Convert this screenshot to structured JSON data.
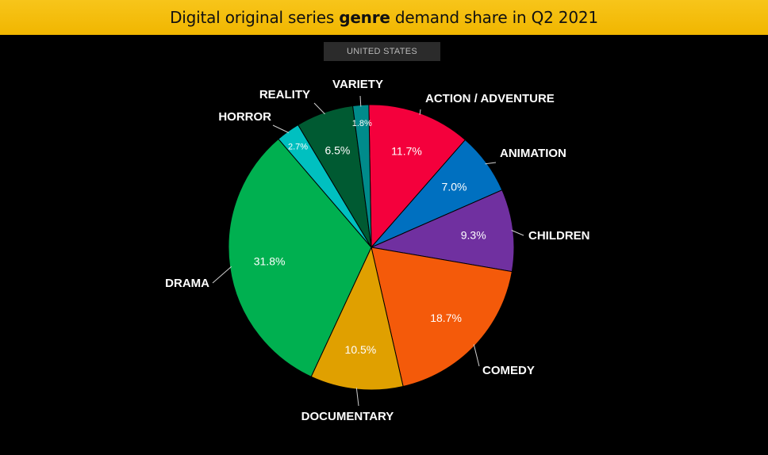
{
  "header": {
    "title_pre": "Digital original series ",
    "title_bold": "genre",
    "title_post": " demand share in Q2 2021",
    "region": "UNITED STATES"
  },
  "chart_data": {
    "type": "pie",
    "title": "Digital original series genre demand share in Q2 2021",
    "subtitle": "UNITED STATES",
    "slices": [
      {
        "label": "ACTION / ADVENTURE",
        "value": 11.7,
        "display": "11.7%",
        "color": "#f4003c"
      },
      {
        "label": "ANIMATION",
        "value": 7.0,
        "display": "7.0%",
        "color": "#0070c0"
      },
      {
        "label": "CHILDREN",
        "value": 9.3,
        "display": "9.3%",
        "color": "#7030a0"
      },
      {
        "label": "COMEDY",
        "value": 18.7,
        "display": "18.7%",
        "color": "#f45a0a"
      },
      {
        "label": "DOCUMENTARY",
        "value": 10.5,
        "display": "10.5%",
        "color": "#e0a000"
      },
      {
        "label": "DRAMA",
        "value": 31.8,
        "display": "31.8%",
        "color": "#00b050"
      },
      {
        "label": "HORROR",
        "value": 2.7,
        "display": "2.7%",
        "color": "#00c0c0"
      },
      {
        "label": "REALITY",
        "value": 6.5,
        "display": "6.5%",
        "color": "#005a32"
      },
      {
        "label": "VARIETY",
        "value": 1.8,
        "display": "1.8%",
        "color": "#008b8b"
      }
    ]
  }
}
